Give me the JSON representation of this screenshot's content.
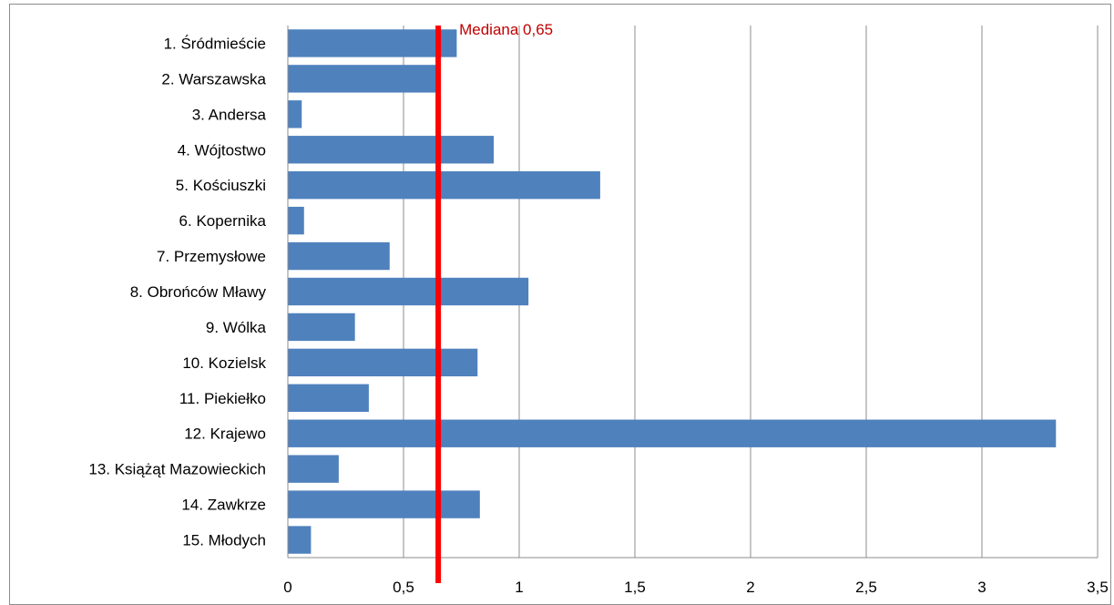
{
  "chart_data": {
    "type": "bar",
    "orientation": "horizontal",
    "title": "",
    "xlabel": "",
    "ylabel": "",
    "categories": [
      "1. Śródmieście",
      "2. Warszawska",
      "3. Andersa",
      "4. Wójtostwo",
      "5. Kościuszki",
      "6. Kopernika",
      "7. Przemysłowe",
      "8. Obrońców Mławy",
      "9. Wólka",
      "10. Kozielsk",
      "11. Piekiełko",
      "12. Krajewo",
      "13. Książąt Mazowieckich",
      "14. Zawkrze",
      "15. Młodych"
    ],
    "values": [
      0.73,
      0.65,
      0.06,
      0.89,
      1.35,
      0.07,
      0.44,
      1.04,
      0.29,
      0.82,
      0.35,
      3.32,
      0.22,
      0.83,
      0.1
    ],
    "xlim": [
      0,
      3.5
    ],
    "xticks": [
      "0",
      "0,5",
      "1",
      "1,5",
      "2",
      "2,5",
      "3",
      "3,5"
    ],
    "grid": true,
    "legend": "none",
    "bar_color": "#4f81bd",
    "median": {
      "value": 0.65,
      "label": "Mediana 0,65",
      "color": "#ff0000",
      "label_color": "#c00000"
    }
  }
}
